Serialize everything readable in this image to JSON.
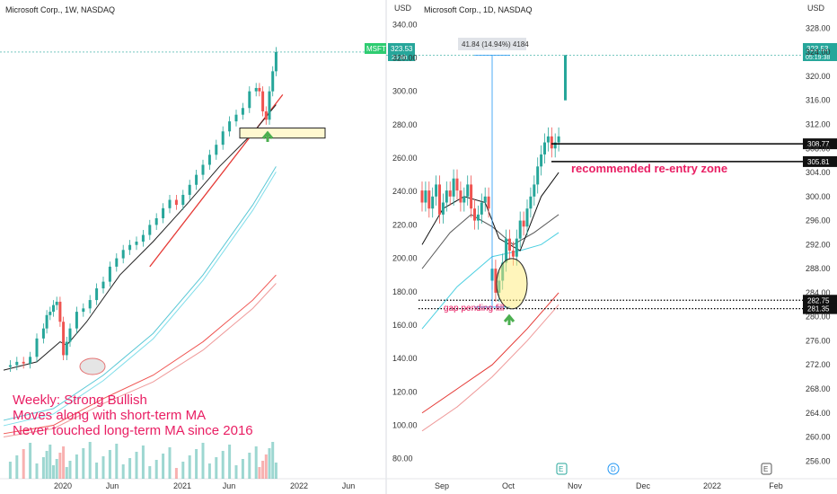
{
  "chart_data": [
    {
      "type": "candlestick",
      "title": "Microsoft Corp., 1W, NASDAQ",
      "currency_label": "USD",
      "y_ticks": [
        "340.00",
        "320.00",
        "300.00",
        "280.00",
        "260.00",
        "240.00",
        "220.00",
        "200.00",
        "180.00",
        "160.00",
        "140.00",
        "120.00",
        "100.00",
        "80.00"
      ],
      "ylim": [
        75,
        345
      ],
      "x_ticks": [
        "2020",
        "Jun",
        "2021",
        "Jun",
        "2022",
        "Jun"
      ],
      "last_price_badge": {
        "ticker": "MSFT",
        "price": "323.53",
        "countdown": "2d 6h"
      },
      "annotation_text": [
        "Weekly: Strong Bullish",
        "Moves along with short-term MA",
        "Never touched long-term MA since 2016"
      ],
      "price_path": [
        [
          0,
          135
        ],
        [
          4,
          136
        ],
        [
          8,
          138
        ],
        [
          12,
          137
        ],
        [
          16,
          141
        ],
        [
          20,
          152
        ],
        [
          24,
          158
        ],
        [
          26,
          166
        ],
        [
          28,
          168
        ],
        [
          30,
          172
        ],
        [
          32,
          174
        ],
        [
          34,
          162
        ],
        [
          36,
          142
        ],
        [
          38,
          150
        ],
        [
          40,
          158
        ],
        [
          44,
          168
        ],
        [
          48,
          170
        ],
        [
          52,
          175
        ],
        [
          56,
          182
        ],
        [
          60,
          186
        ],
        [
          64,
          195
        ],
        [
          68,
          200
        ],
        [
          72,
          205
        ],
        [
          76,
          208
        ],
        [
          80,
          210
        ],
        [
          84,
          214
        ],
        [
          88,
          220
        ],
        [
          92,
          224
        ],
        [
          96,
          230
        ],
        [
          100,
          235
        ],
        [
          104,
          232
        ],
        [
          108,
          238
        ],
        [
          112,
          244
        ],
        [
          116,
          250
        ],
        [
          120,
          256
        ],
        [
          124,
          262
        ],
        [
          128,
          268
        ],
        [
          132,
          276
        ],
        [
          136,
          282
        ],
        [
          140,
          286
        ],
        [
          144,
          290
        ],
        [
          148,
          300
        ],
        [
          152,
          302
        ],
        [
          154,
          300
        ],
        [
          156,
          288
        ],
        [
          158,
          283
        ],
        [
          160,
          300
        ],
        [
          162,
          312
        ],
        [
          164,
          323.53
        ]
      ],
      "ma_short_path": [
        [
          0,
          133
        ],
        [
          20,
          138
        ],
        [
          34,
          150
        ],
        [
          38,
          148
        ],
        [
          50,
          162
        ],
        [
          70,
          190
        ],
        [
          90,
          210
        ],
        [
          110,
          232
        ],
        [
          130,
          255
        ],
        [
          150,
          275
        ],
        [
          164,
          292
        ]
      ],
      "ma_long_paths": [
        [
          [
            0,
            103
          ],
          [
            30,
            110
          ],
          [
            60,
            130
          ],
          [
            90,
            155
          ],
          [
            120,
            190
          ],
          [
            150,
            232
          ],
          [
            164,
            255
          ]
        ],
        [
          [
            0,
            95
          ],
          [
            30,
            100
          ],
          [
            60,
            116
          ],
          [
            90,
            130
          ],
          [
            120,
            150
          ],
          [
            150,
            175
          ],
          [
            164,
            190
          ]
        ],
        [
          [
            0,
            93
          ],
          [
            30,
            98
          ],
          [
            60,
            113
          ],
          [
            90,
            126
          ],
          [
            120,
            145
          ],
          [
            150,
            170
          ],
          [
            164,
            185
          ]
        ]
      ],
      "trendline": [
        [
          88,
          195
        ],
        [
          168,
          298
        ]
      ],
      "support_box_price": [
        272,
        278
      ]
    },
    {
      "type": "candlestick",
      "title": "Microsoft Corp., 1D, NASDAQ",
      "currency_label": "USD",
      "y_ticks": [
        "328.00",
        "324.00",
        "320.00",
        "316.00",
        "312.00",
        "308.00",
        "304.00",
        "300.00",
        "296.00",
        "292.00",
        "288.00",
        "284.00",
        "280.00",
        "276.00",
        "272.00",
        "268.00",
        "264.00",
        "260.00",
        "256.00"
      ],
      "ylim": [
        255,
        330
      ],
      "x_ticks": [
        "Sep",
        "Oct",
        "Nov",
        "Dec",
        "2022",
        "Feb"
      ],
      "last_price_badge": {
        "price": "323.53",
        "countdown": "05:19:38"
      },
      "levels": [
        {
          "price": 308.77,
          "label": "308.77",
          "style": "solid"
        },
        {
          "price": 305.81,
          "label": "305.81",
          "style": "solid"
        },
        {
          "price": 282.75,
          "label": "282.75",
          "style": "dotted"
        },
        {
          "price": 281.35,
          "label": "281.35",
          "style": "dotted"
        }
      ],
      "measure_label": "41.84 (14.94%) 4184",
      "zone_label": "recommended re-entry zone",
      "gap_label": "gap pending fill",
      "event_markers": [
        "E",
        "D",
        "E"
      ],
      "candles_close": [
        299,
        301,
        298,
        300,
        302,
        297,
        299,
        301,
        300,
        303,
        301,
        299,
        300,
        302,
        298,
        296,
        297,
        299,
        300,
        298,
        288,
        284,
        286,
        289,
        293,
        291,
        290,
        293,
        296,
        295,
        298,
        300,
        302,
        305,
        307,
        309,
        310,
        308,
        309,
        310
      ],
      "candles_open": [
        301,
        299,
        301,
        298,
        300,
        302,
        297,
        299,
        301,
        300,
        303,
        301,
        299,
        300,
        302,
        298,
        296,
        297,
        299,
        300,
        286,
        288,
        284,
        286,
        289,
        293,
        291,
        290,
        293,
        296,
        295,
        298,
        300,
        302,
        305,
        307,
        309,
        310,
        308,
        309
      ],
      "last_close": 323.53,
      "ma_short_path": [
        [
          0,
          292
        ],
        [
          6,
          298
        ],
        [
          12,
          300
        ],
        [
          18,
          299
        ],
        [
          22,
          293
        ],
        [
          28,
          291
        ],
        [
          34,
          300
        ],
        [
          39,
          304
        ]
      ],
      "ma_mid_path": [
        [
          0,
          288
        ],
        [
          8,
          294
        ],
        [
          14,
          297
        ],
        [
          20,
          295
        ],
        [
          26,
          292
        ],
        [
          32,
          294
        ],
        [
          39,
          297
        ]
      ],
      "ma_long_path": [
        [
          0,
          278
        ],
        [
          10,
          285
        ],
        [
          20,
          290
        ],
        [
          28,
          291
        ],
        [
          34,
          292
        ],
        [
          39,
          294
        ]
      ],
      "ema_red_paths": [
        [
          [
            0,
            264
          ],
          [
            10,
            268
          ],
          [
            20,
            272
          ],
          [
            30,
            278
          ],
          [
            39,
            284
          ]
        ],
        [
          [
            0,
            261
          ],
          [
            10,
            265
          ],
          [
            20,
            270
          ],
          [
            30,
            276
          ],
          [
            39,
            282
          ]
        ]
      ]
    }
  ]
}
